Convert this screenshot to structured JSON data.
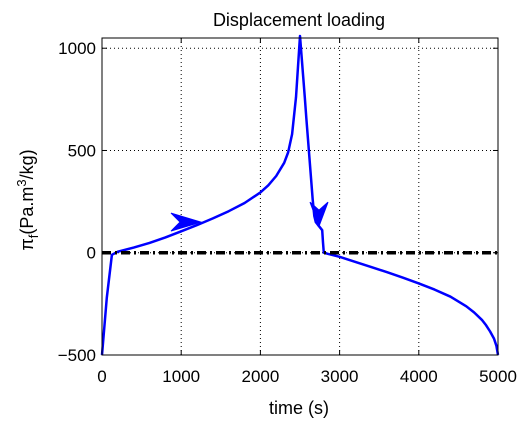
{
  "chart_data": {
    "type": "line",
    "title": "Displacement loading",
    "xlabel": "time (s)",
    "ylabel_main": "π",
    "ylabel_sub": "f",
    "ylabel_units_a": "(Pa.m",
    "ylabel_units_sup": "3",
    "ylabel_units_b": "/kg)",
    "xlim": [
      0,
      5000
    ],
    "ylim": [
      -500,
      1050
    ],
    "xticks": [
      0,
      1000,
      2000,
      3000,
      4000,
      5000
    ],
    "yticks": [
      -500,
      0,
      500,
      1000
    ],
    "xtick_labels": [
      "0",
      "1000",
      "2000",
      "3000",
      "4000",
      "5000"
    ],
    "ytick_labels": [
      "−500",
      "0",
      "500",
      "1000"
    ],
    "grid": true,
    "series": [
      {
        "color": "#0000ff",
        "style": "solid",
        "x": [
          0,
          60,
          125,
          200,
          400,
          600,
          800,
          1000,
          1200,
          1400,
          1600,
          1800,
          2000,
          2100,
          2200,
          2300,
          2350,
          2400,
          2450,
          2500,
          2520,
          2540,
          2560,
          2580,
          2600,
          2620,
          2640,
          2660,
          2680,
          2700,
          2720,
          2740,
          2760,
          2780,
          2790,
          2800,
          2850,
          2900,
          3000,
          3200,
          3400,
          3600,
          3800,
          4000,
          4200,
          4400,
          4600,
          4700,
          4800,
          4850,
          4900,
          4950,
          4980,
          5000
        ],
        "y": [
          -500,
          -220,
          -10,
          5,
          25,
          48,
          75,
          105,
          135,
          168,
          203,
          243,
          295,
          330,
          375,
          440,
          490,
          580,
          760,
          1060,
          960,
          860,
          760,
          660,
          560,
          460,
          360,
          260,
          180,
          150,
          140,
          130,
          120,
          110,
          50,
          0,
          -5,
          -10,
          -20,
          -45,
          -70,
          -95,
          -122,
          -150,
          -180,
          -215,
          -262,
          -292,
          -330,
          -355,
          -385,
          -420,
          -455,
          -500
        ]
      },
      {
        "color": "#000000",
        "style": "dash-dot",
        "x": [
          0,
          5000
        ],
        "y": [
          0,
          0
        ]
      }
    ],
    "arrows": [
      {
        "x": 1250,
        "y": 150,
        "direction": "right",
        "color": "#0000ff"
      },
      {
        "x": 2740,
        "y": 130,
        "direction": "down",
        "color": "#0000ff"
      }
    ]
  }
}
